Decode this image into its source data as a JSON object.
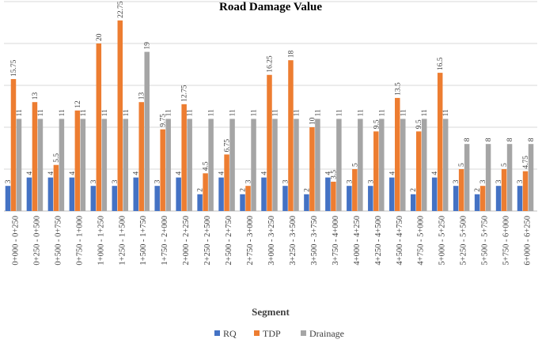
{
  "chart_data": {
    "type": "bar",
    "title": "Road Damage Value",
    "xlabel": "Segment",
    "ylabel": "",
    "ylim": [
      0,
      25
    ],
    "grid": true,
    "legend_position": "bottom",
    "categories": [
      "0+000 - 0+250",
      "0+250 - 0+500",
      "0+500 - 0+750",
      "0+750 - 1+000",
      "1+000 - 1+250",
      "1+250 - 1+500",
      "1+500 - 1+750",
      "1+750 - 2+000",
      "2+000 - 2+250",
      "2+250 - 2+500",
      "2+500 - 2+750",
      "2+750 - 3+000",
      "3+000 - 3+250",
      "3+250 - 3+500",
      "3+500 - 3+750",
      "3+750 - 4+000",
      "4+000 - 4+250",
      "4+250 - 4+500",
      "4+500 - 4+750",
      "4+750 - 5+000",
      "5+000 - 5+250",
      "5+250 - 5+500",
      "5+500 - 5+750",
      "5+750 - 6+000",
      "6+000 - 6+250"
    ],
    "series": [
      {
        "name": "RQ",
        "color": "#4472C4",
        "values": [
          3,
          4,
          4,
          4,
          3,
          3,
          4,
          3,
          4,
          2,
          4,
          2,
          4,
          3,
          2,
          4,
          3,
          3,
          4,
          2,
          4,
          3,
          2,
          3,
          3
        ]
      },
      {
        "name": "TDP",
        "color": "#ED7D31",
        "values": [
          15.75,
          13,
          5.5,
          12,
          20,
          22.75,
          13,
          9.75,
          12.75,
          4.5,
          6.75,
          3,
          16.25,
          18,
          10,
          3.5,
          5,
          9.5,
          13.5,
          9.5,
          16.5,
          5,
          3,
          5,
          4.75
        ]
      },
      {
        "name": "Drainage",
        "color": "#A5A5A5",
        "values": [
          11,
          11,
          11,
          11,
          11,
          11,
          19,
          11,
          11,
          11,
          11,
          11,
          11,
          11,
          11,
          11,
          11,
          11,
          11,
          11,
          11,
          8,
          8,
          8,
          8
        ]
      }
    ]
  }
}
